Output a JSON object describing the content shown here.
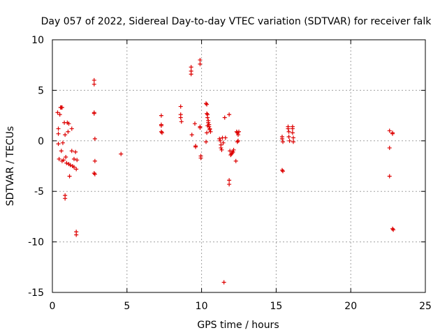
{
  "chart_data": {
    "type": "scatter",
    "title": "Day 057 of 2022, Sidereal Day-to-day VTEC variation (SDTVAR) for receiver falk",
    "xlabel": "GPS time / hours",
    "ylabel": "SDTVAR / TECUs",
    "xlim": [
      0,
      25
    ],
    "ylim": [
      -15,
      10
    ],
    "xticks": [
      0,
      5,
      10,
      15,
      20,
      25
    ],
    "yticks": [
      -15,
      -10,
      -5,
      0,
      5,
      10
    ],
    "xtick_labels": [
      "0",
      "5",
      "10",
      "15",
      "20",
      "25"
    ],
    "ytick_labels": [
      "-15",
      "-10",
      "-5",
      "0",
      "5",
      "10"
    ],
    "grid": true,
    "marker": "+",
    "color": "#dd0000",
    "series": [
      {
        "name": "falk",
        "points": [
          [
            0.35,
            2.8
          ],
          [
            0.4,
            1.2
          ],
          [
            0.4,
            0.7
          ],
          [
            0.4,
            -0.3
          ],
          [
            0.45,
            -1.8
          ],
          [
            0.5,
            2.6
          ],
          [
            0.55,
            3.3
          ],
          [
            0.6,
            3.3
          ],
          [
            0.65,
            3.3
          ],
          [
            0.6,
            -1.0
          ],
          [
            0.65,
            -2.0
          ],
          [
            0.7,
            -0.2
          ],
          [
            0.75,
            -1.9
          ],
          [
            0.8,
            1.8
          ],
          [
            0.85,
            0.6
          ],
          [
            0.9,
            -1.6
          ],
          [
            0.95,
            -2.2
          ],
          [
            0.85,
            -5.4
          ],
          [
            0.85,
            -5.7
          ],
          [
            1.0,
            1.8
          ],
          [
            1.1,
            1.7
          ],
          [
            1.05,
            0.9
          ],
          [
            1.1,
            -2.3
          ],
          [
            1.15,
            -3.5
          ],
          [
            1.2,
            -2.4
          ],
          [
            1.3,
            1.2
          ],
          [
            1.3,
            -1.0
          ],
          [
            1.35,
            -2.5
          ],
          [
            1.45,
            -1.8
          ],
          [
            1.45,
            -2.6
          ],
          [
            1.55,
            -1.1
          ],
          [
            1.6,
            -2.8
          ],
          [
            1.65,
            -1.9
          ],
          [
            1.6,
            -9.0
          ],
          [
            1.6,
            -9.3
          ],
          [
            2.8,
            6.0
          ],
          [
            2.8,
            5.6
          ],
          [
            2.8,
            2.8
          ],
          [
            2.8,
            2.7
          ],
          [
            2.85,
            0.2
          ],
          [
            2.85,
            -2.0
          ],
          [
            2.8,
            -3.2
          ],
          [
            2.85,
            -3.3
          ],
          [
            4.6,
            -1.3
          ],
          [
            7.3,
            2.5
          ],
          [
            7.3,
            1.6
          ],
          [
            7.3,
            1.5
          ],
          [
            7.3,
            0.9
          ],
          [
            7.35,
            0.8
          ],
          [
            8.6,
            3.4
          ],
          [
            8.6,
            2.6
          ],
          [
            8.6,
            2.3
          ],
          [
            8.65,
            1.9
          ],
          [
            9.3,
            7.3
          ],
          [
            9.3,
            6.9
          ],
          [
            9.3,
            6.6
          ],
          [
            9.35,
            0.6
          ],
          [
            9.55,
            1.7
          ],
          [
            9.6,
            -0.5
          ],
          [
            9.6,
            -0.6
          ],
          [
            9.9,
            8.0
          ],
          [
            9.9,
            7.6
          ],
          [
            9.9,
            1.4
          ],
          [
            9.9,
            1.3
          ],
          [
            9.95,
            -1.5
          ],
          [
            9.95,
            -1.7
          ],
          [
            10.3,
            3.7
          ],
          [
            10.35,
            3.6
          ],
          [
            10.35,
            2.7
          ],
          [
            10.4,
            2.6
          ],
          [
            10.4,
            2.3
          ],
          [
            10.45,
            2.0
          ],
          [
            10.45,
            1.8
          ],
          [
            10.5,
            1.6
          ],
          [
            10.5,
            1.4
          ],
          [
            10.55,
            1.2
          ],
          [
            10.55,
            1.1
          ],
          [
            10.6,
            0.9
          ],
          [
            10.4,
            1.5
          ],
          [
            10.35,
            0.8
          ],
          [
            10.3,
            -0.1
          ],
          [
            11.2,
            0.2
          ],
          [
            11.25,
            0.0
          ],
          [
            11.3,
            -0.4
          ],
          [
            11.3,
            -0.7
          ],
          [
            11.35,
            -0.9
          ],
          [
            11.4,
            0.3
          ],
          [
            11.45,
            -0.2
          ],
          [
            11.55,
            2.3
          ],
          [
            11.6,
            0.3
          ],
          [
            11.5,
            -14.0
          ],
          [
            11.85,
            2.6
          ],
          [
            11.85,
            -3.9
          ],
          [
            11.85,
            -4.3
          ],
          [
            11.9,
            -1.0
          ],
          [
            11.95,
            -1.4
          ],
          [
            12.0,
            -1.3
          ],
          [
            12.05,
            -1.2
          ],
          [
            12.1,
            -1.1
          ],
          [
            12.15,
            -0.9
          ],
          [
            12.3,
            -2.0
          ],
          [
            12.35,
            0.9
          ],
          [
            12.4,
            0.8
          ],
          [
            12.45,
            0.6
          ],
          [
            12.5,
            0.9
          ],
          [
            12.4,
            -0.1
          ],
          [
            12.45,
            0.0
          ],
          [
            15.4,
            0.4
          ],
          [
            15.4,
            0.2
          ],
          [
            15.45,
            -0.1
          ],
          [
            15.4,
            -2.9
          ],
          [
            15.45,
            -3.0
          ],
          [
            15.8,
            1.4
          ],
          [
            15.8,
            1.2
          ],
          [
            15.85,
            0.9
          ],
          [
            15.85,
            0.4
          ],
          [
            15.9,
            0.0
          ],
          [
            16.1,
            1.4
          ],
          [
            16.1,
            1.2
          ],
          [
            16.1,
            0.8
          ],
          [
            16.15,
            0.3
          ],
          [
            16.15,
            -0.1
          ],
          [
            22.6,
            1.0
          ],
          [
            22.6,
            -0.7
          ],
          [
            22.6,
            -3.5
          ],
          [
            22.8,
            0.8
          ],
          [
            22.8,
            0.7
          ],
          [
            22.8,
            -8.7
          ],
          [
            22.85,
            -8.8
          ]
        ]
      }
    ]
  }
}
